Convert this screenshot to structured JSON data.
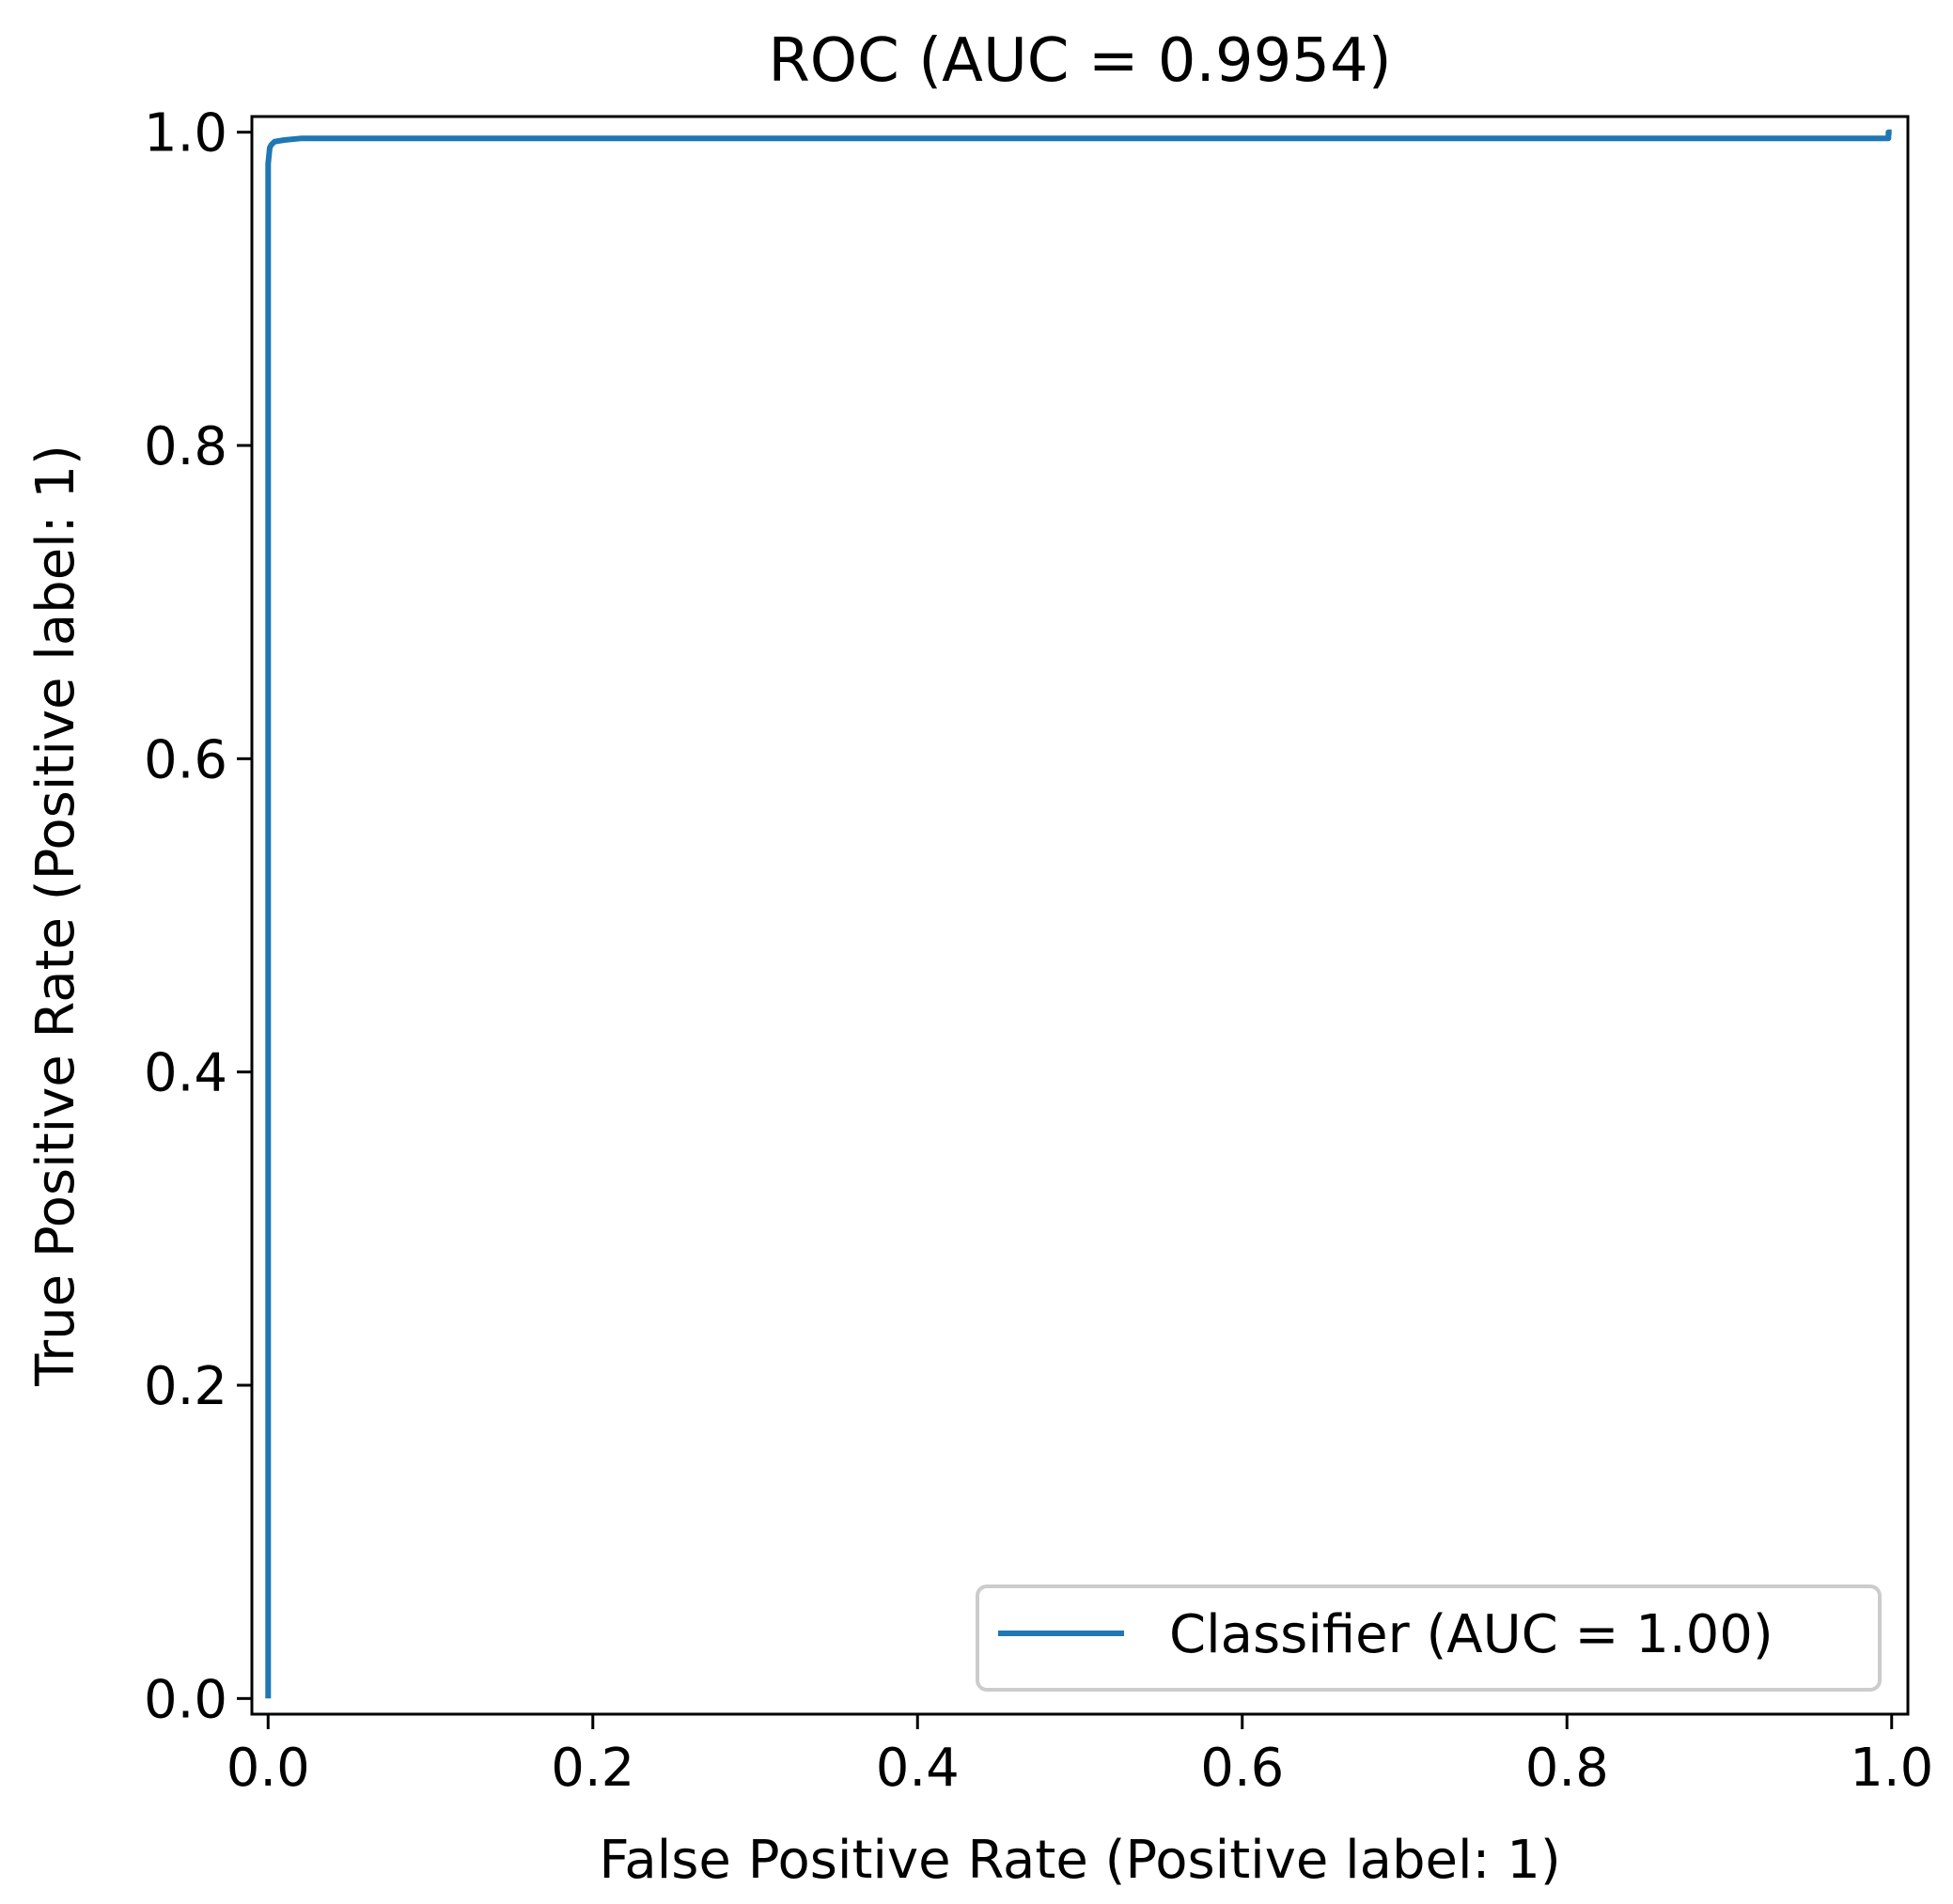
{
  "chart_data": {
    "type": "line",
    "title": "ROC (AUC = 0.9954)",
    "xlabel": "False Positive Rate (Positive label: 1)",
    "ylabel": "True Positive Rate (Positive label: 1)",
    "xlim": [
      -0.01,
      1.01
    ],
    "ylim": [
      -0.01,
      1.01
    ],
    "xticks": [
      0.0,
      0.2,
      0.4,
      0.6,
      0.8,
      1.0
    ],
    "yticks": [
      0.0,
      0.2,
      0.4,
      0.6,
      0.8,
      1.0
    ],
    "xtick_labels": [
      "0.0",
      "0.2",
      "0.4",
      "0.6",
      "0.8",
      "1.0"
    ],
    "ytick_labels": [
      "0.0",
      "0.2",
      "0.4",
      "0.6",
      "0.8",
      "1.0"
    ],
    "grid": false,
    "legend_position": "lower-right",
    "series": [
      {
        "name": "Classifier (AUC = 1.00)",
        "color": "#1f77b4",
        "x": [
          0.0,
          0.0,
          0.001,
          0.002,
          0.004,
          0.01,
          0.02,
          0.04,
          0.2,
          0.5,
          0.8,
          0.99,
          0.995,
          0.998,
          0.998,
          1.0
        ],
        "y": [
          0.0,
          0.98,
          0.99,
          0.992,
          0.994,
          0.995,
          0.996,
          0.996,
          0.996,
          0.996,
          0.996,
          0.996,
          0.996,
          0.996,
          1.0,
          1.0
        ]
      }
    ]
  }
}
